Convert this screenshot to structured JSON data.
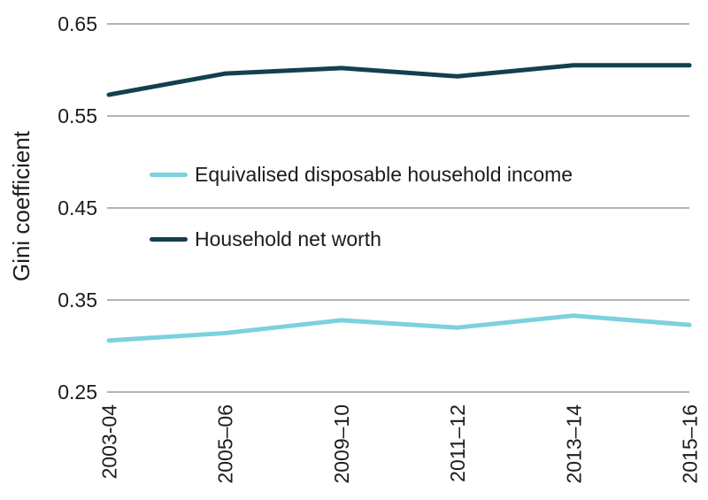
{
  "chart_data": {
    "type": "line",
    "ylabel": "Gini coefficient",
    "x": [
      "2003-04",
      "2005–06",
      "2009–10",
      "2011–12",
      "2013–14",
      "2015–16"
    ],
    "series": [
      {
        "name": "Equivalised disposable household income",
        "color": "#7CD1DE",
        "values": [
          0.306,
          0.314,
          0.328,
          0.32,
          0.333,
          0.323
        ]
      },
      {
        "name": "Household net worth",
        "color": "#13404F",
        "values": [
          0.573,
          0.596,
          0.602,
          0.593,
          0.605,
          0.605
        ]
      }
    ],
    "ylim": [
      0.25,
      0.65
    ],
    "yticks": [
      "0.65",
      "0.55",
      "0.45",
      "0.35",
      "0.25"
    ],
    "grid": "horizontal-only",
    "legend_position": "inside-left-middle",
    "x_tick_rotation": -90
  },
  "colors": {
    "background": "#FFFFFF",
    "gridline": "#9B9B9B",
    "text": "#1C1C1C"
  }
}
